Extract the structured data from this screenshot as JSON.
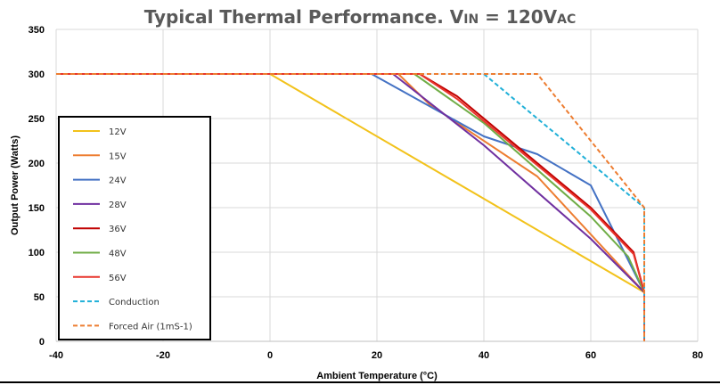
{
  "chart_data": {
    "type": "line",
    "title": {
      "prefix": "Typical Thermal Performance. V",
      "sub1": "IN",
      "mid": " = 120V",
      "sub2": "AC"
    },
    "xlabel": "Ambient Temperature (°C)",
    "ylabel": "Output Power (Watts)",
    "xlim": [
      -40,
      80
    ],
    "ylim": [
      0,
      350
    ],
    "xticks": [
      -40,
      -20,
      0,
      20,
      40,
      60,
      80
    ],
    "yticks": [
      0,
      50,
      100,
      150,
      200,
      250,
      300,
      350
    ],
    "grid": true,
    "legend_position": "lower-left",
    "series": [
      {
        "name": "12V",
        "color": "#f2c21b",
        "dash": false,
        "x": [
          -40,
          0,
          70,
          70
        ],
        "y": [
          300,
          300,
          55,
          0
        ]
      },
      {
        "name": "15V",
        "color": "#ed7d31",
        "dash": false,
        "x": [
          -40,
          24,
          30,
          50,
          70,
          70
        ],
        "y": [
          300,
          300,
          265,
          185,
          55,
          0
        ]
      },
      {
        "name": "24V",
        "color": "#4472c4",
        "dash": false,
        "x": [
          -40,
          19,
          40,
          50,
          60,
          70,
          70
        ],
        "y": [
          300,
          300,
          230,
          210,
          175,
          55,
          0
        ]
      },
      {
        "name": "28V",
        "color": "#7030a0",
        "dash": false,
        "x": [
          -40,
          23,
          40,
          60,
          70,
          70
        ],
        "y": [
          300,
          300,
          220,
          115,
          55,
          0
        ]
      },
      {
        "name": "36V",
        "color": "#c00000",
        "dash": false,
        "x": [
          -40,
          28,
          35,
          60,
          68,
          70,
          70
        ],
        "y": [
          300,
          300,
          275,
          150,
          100,
          55,
          0
        ]
      },
      {
        "name": "48V",
        "color": "#70ad47",
        "dash": false,
        "x": [
          -40,
          27,
          40,
          60,
          67,
          70,
          70
        ],
        "y": [
          300,
          300,
          245,
          140,
          95,
          55,
          0
        ]
      },
      {
        "name": "56V",
        "color": "#e8352c",
        "dash": false,
        "x": [
          -40,
          28,
          35,
          60,
          68,
          70,
          70
        ],
        "y": [
          300,
          300,
          272,
          148,
          98,
          55,
          0
        ]
      },
      {
        "name": "Conduction",
        "color": "#20b0d8",
        "dash": true,
        "x": [
          -40,
          40,
          70,
          70
        ],
        "y": [
          300,
          300,
          150,
          0
        ]
      },
      {
        "name": "Forced Air (1mS-1)",
        "color": "#ed7d31",
        "dash": true,
        "x": [
          -40,
          50,
          70,
          70
        ],
        "y": [
          300,
          300,
          150,
          0
        ]
      }
    ]
  }
}
